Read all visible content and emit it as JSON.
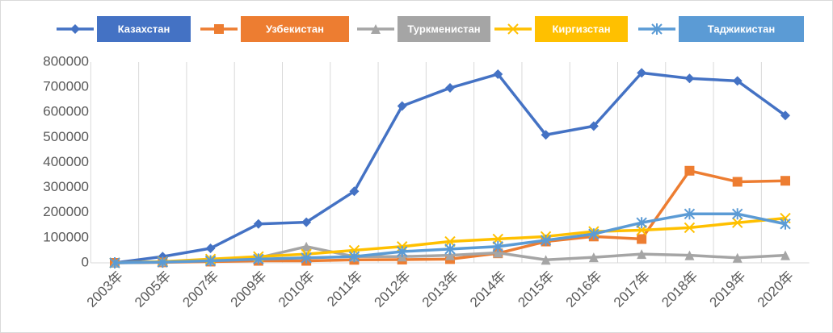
{
  "chart_data": {
    "type": "line",
    "categories": [
      "2003年",
      "2005年",
      "2007年",
      "2009年",
      "2010年",
      "2011年",
      "2012年",
      "2013年",
      "2014年",
      "2015年",
      "2016年",
      "2017年",
      "2018年",
      "2019年",
      "2020年"
    ],
    "series": [
      {
        "name": "Казахстан",
        "color": "#4472c4",
        "marker": "diamond",
        "values": [
          0,
          25000,
          58000,
          155000,
          162000,
          285000,
          625000,
          697000,
          752000,
          510000,
          545000,
          757000,
          735000,
          725000,
          587000
        ]
      },
      {
        "name": "Узбекистан",
        "color": "#ed7d31",
        "marker": "square",
        "values": [
          0,
          2000,
          5000,
          8000,
          8000,
          12000,
          13000,
          15000,
          38000,
          85000,
          105000,
          95000,
          367000,
          323000,
          327000
        ]
      },
      {
        "name": "Туркменистан",
        "color": "#a5a5a5",
        "marker": "triangle",
        "values": [
          0,
          5000,
          10000,
          20000,
          65000,
          25000,
          25000,
          30000,
          40000,
          12000,
          22000,
          35000,
          30000,
          20000,
          30000
        ]
      },
      {
        "name": "Киргизстан",
        "color": "#ffc000",
        "marker": "x",
        "values": [
          0,
          5000,
          15000,
          25000,
          35000,
          50000,
          65000,
          85000,
          95000,
          105000,
          125000,
          130000,
          140000,
          160000,
          178000
        ]
      },
      {
        "name": "Таджикистан",
        "color": "#5b9bd5",
        "marker": "star",
        "values": [
          0,
          3000,
          8000,
          15000,
          20000,
          25000,
          45000,
          55000,
          65000,
          90000,
          115000,
          160000,
          195000,
          195000,
          155000
        ]
      }
    ],
    "ylim": [
      0,
      800000
    ],
    "yticks": [
      0,
      100000,
      200000,
      300000,
      400000,
      500000,
      600000,
      700000,
      800000
    ],
    "grid": true,
    "legend": "top"
  }
}
